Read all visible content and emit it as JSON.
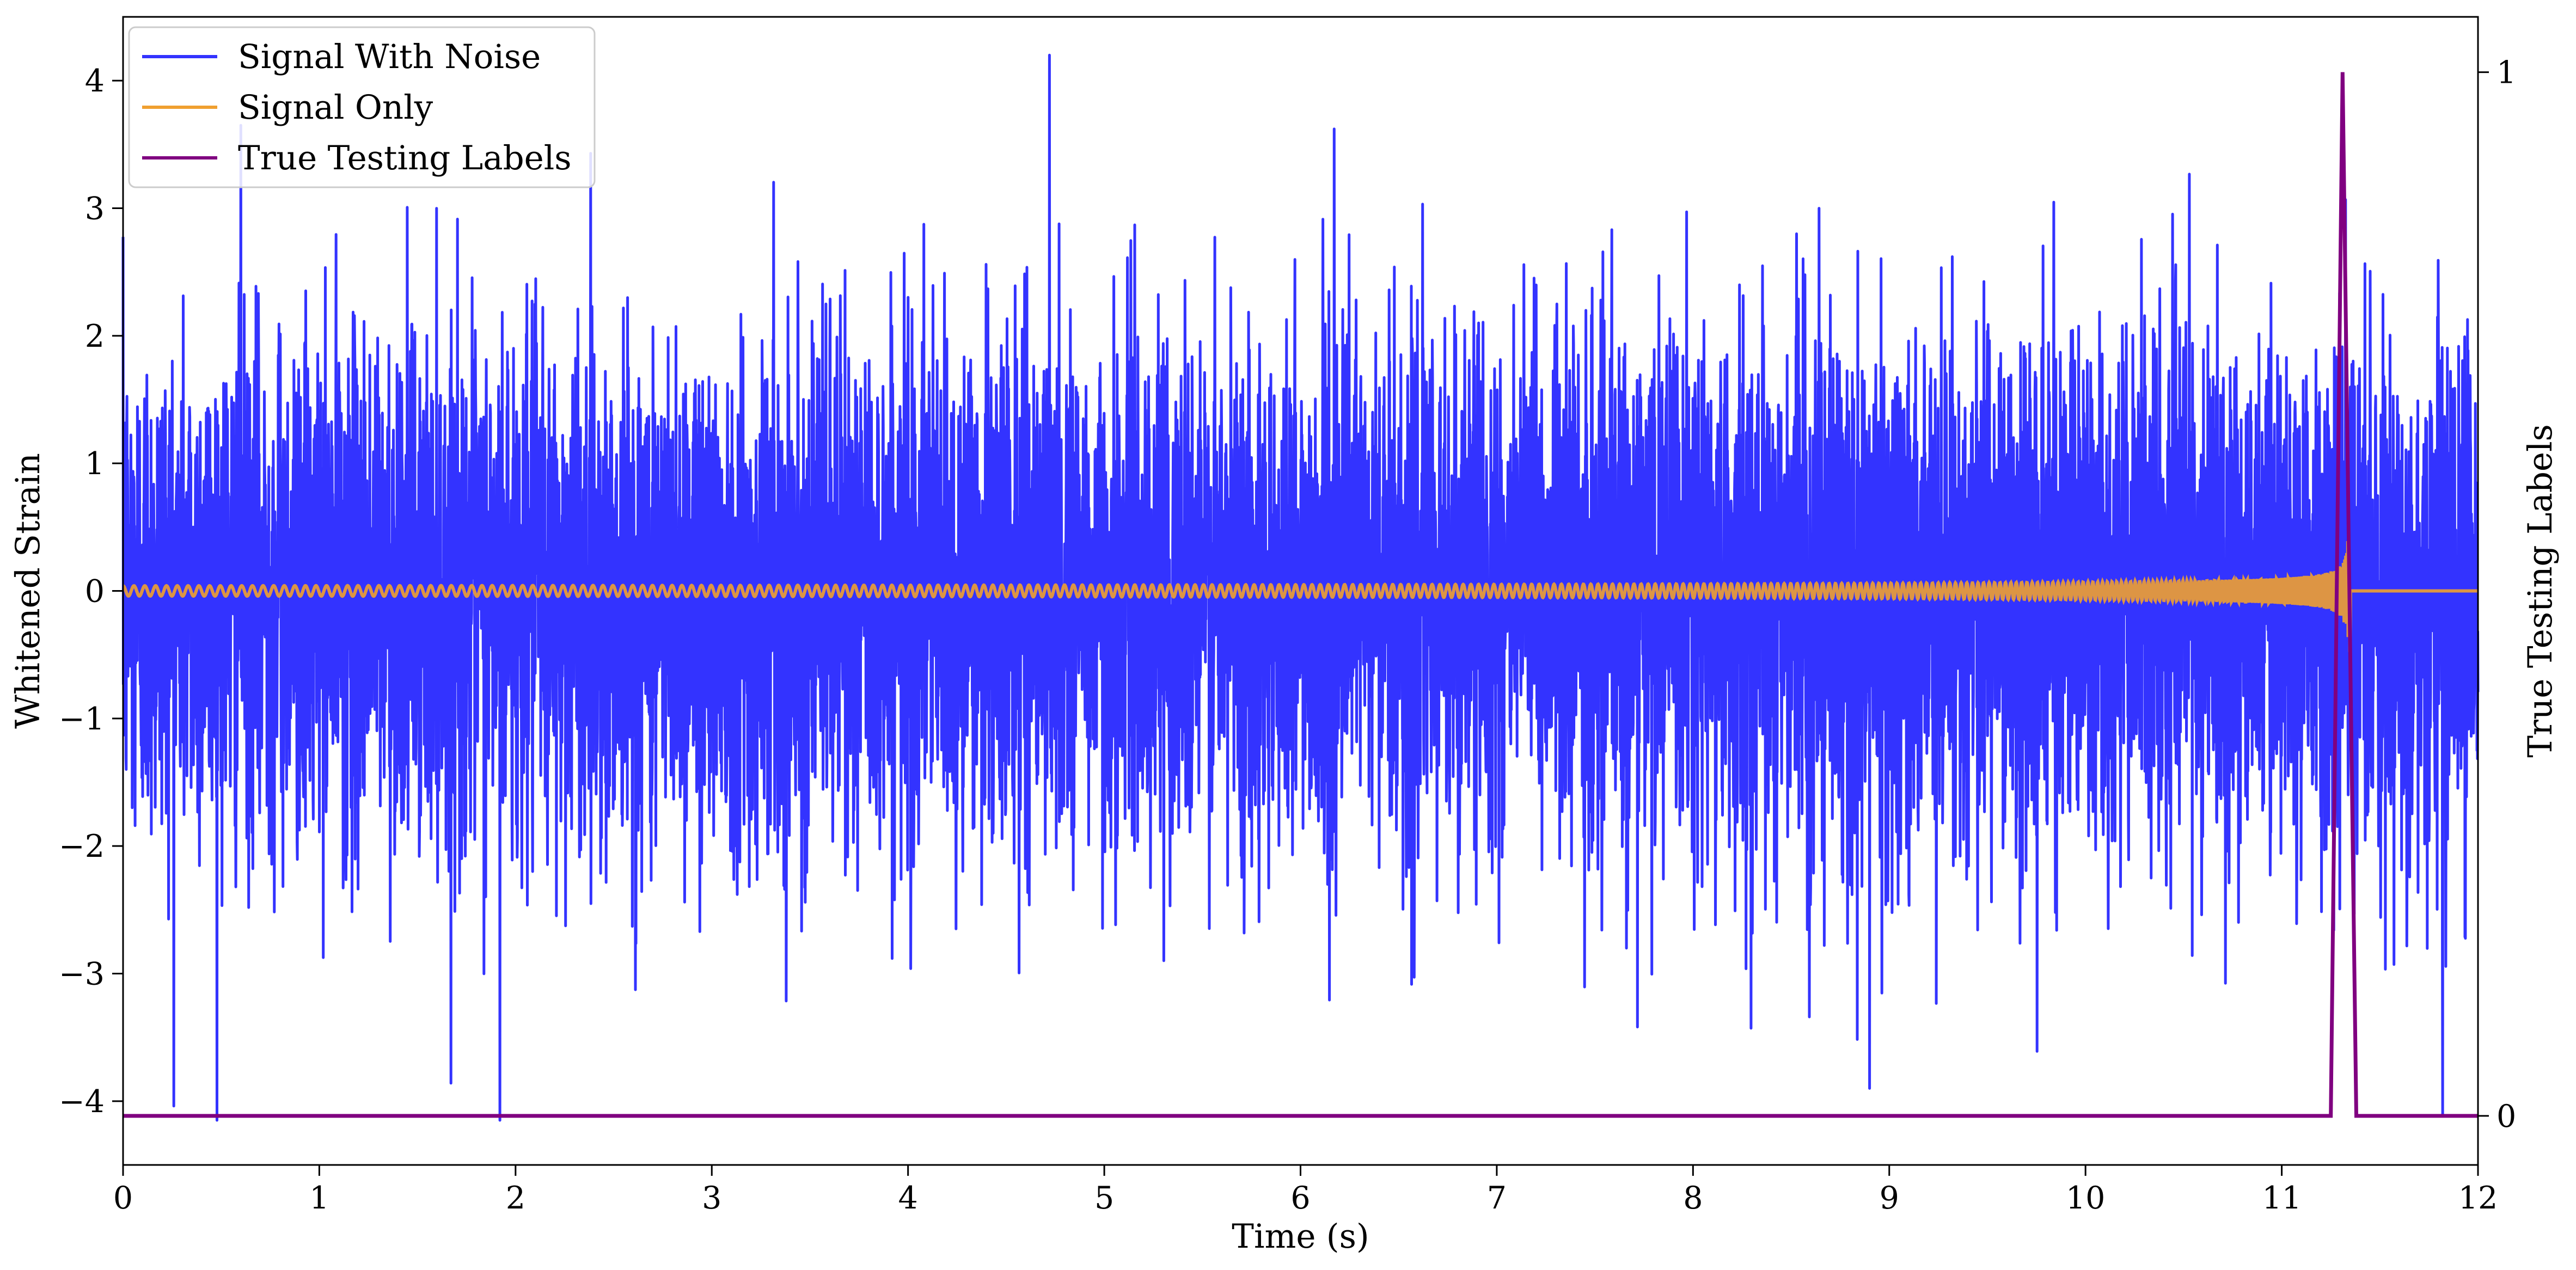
{
  "chart_data": {
    "type": "line",
    "xlabel": "Time (s)",
    "ylabel": "Whitened Strain",
    "y2label": "True Testing Labels",
    "xlim": [
      0,
      12
    ],
    "ylim": [
      -4.5,
      4.5
    ],
    "y2lim": [
      -0.047,
      1.053
    ],
    "x_ticks": [
      "0",
      "1",
      "2",
      "3",
      "4",
      "5",
      "6",
      "7",
      "8",
      "9",
      "10",
      "11",
      "12"
    ],
    "y_ticks": [
      "−4",
      "−3",
      "−2",
      "−1",
      "0",
      "1",
      "2",
      "3",
      "4"
    ],
    "y2_ticks": [
      "0",
      "1"
    ],
    "grid": false,
    "legend_position": "top-left",
    "series": [
      {
        "name": "Signal With Noise",
        "axis": "left",
        "color": "#3333ff",
        "description_values": {
          "type": "noise",
          "duration_s": 12,
          "typical_amplitude": 1.0,
          "max_y": 4.2,
          "min_y": -4.15,
          "notable_peaks": [
            [
              0.6,
              3.65
            ],
            [
              1.92,
              -4.15
            ],
            [
              4.72,
              4.2
            ],
            [
              8.9,
              -3.9
            ],
            [
              11.82,
              -4.1
            ]
          ]
        }
      },
      {
        "name": "Signal Only",
        "axis": "left",
        "color": "#f0a030",
        "description_values": {
          "type": "chirp",
          "start_amplitude": 0.04,
          "end_amplitude": 0.6,
          "merger_time_s": 11.35,
          "after_merger": 0
        }
      },
      {
        "name": "True Testing Labels",
        "axis": "right",
        "color": "#800080",
        "x": [
          0,
          11.25,
          11.31,
          11.38,
          12
        ],
        "y": [
          0,
          0,
          1,
          0,
          0
        ]
      }
    ]
  }
}
